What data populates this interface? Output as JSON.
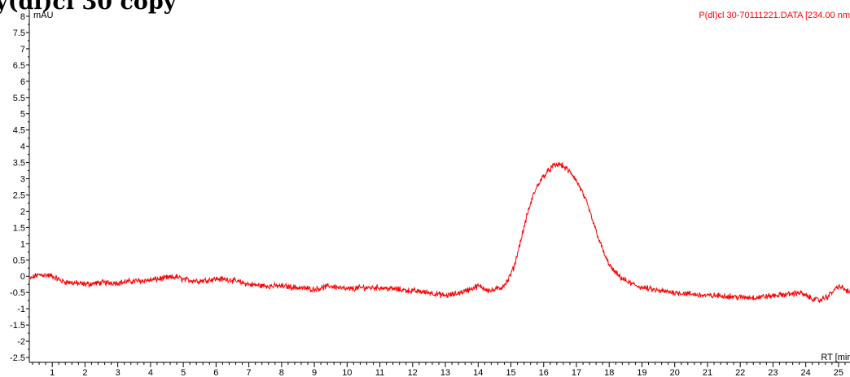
{
  "header": {
    "cropped_title_text": "y(dl)cl 30 copy"
  },
  "colors": {
    "trace": "#ff0000",
    "axis": "#000000",
    "background": "#ffffff"
  },
  "chart_data": {
    "type": "line",
    "y_unit": "mAU",
    "x_unit": "RT [mir",
    "trace_label": "P(dl)cl 30-70111221.DATA [234.00 nm",
    "xlim": [
      0.3,
      25.35
    ],
    "ylim": [
      -2.65,
      8.2
    ],
    "x_ticks": [
      1,
      2,
      3,
      4,
      5,
      6,
      7,
      8,
      9,
      10,
      11,
      12,
      13,
      14,
      15,
      16,
      17,
      18,
      19,
      20,
      21,
      22,
      23,
      24,
      25
    ],
    "x_minor_step": 0.2,
    "y_ticks": [
      -2.5,
      -2,
      -1.5,
      -1,
      -0.5,
      0,
      0.5,
      1,
      1.5,
      2,
      2.5,
      3,
      3.5,
      4,
      4.5,
      5,
      5.5,
      6,
      6.5,
      7,
      7.5,
      8
    ],
    "y_tick_labels": [
      "-2.5",
      "-2",
      "-1.5",
      "-1",
      "-0.5",
      "0",
      "0.5",
      "1",
      "1.5",
      "2",
      "2.5",
      "3",
      "3.5",
      "4",
      "4.5",
      "5",
      "5.5",
      "6",
      "6.5",
      "7",
      "7.5",
      "8"
    ],
    "series": [
      {
        "x": [
          0.3,
          0.5,
          0.7,
          1.0,
          1.3,
          1.6,
          2.0,
          2.5,
          3.0,
          3.5,
          4.0,
          4.5,
          4.8,
          5.0,
          5.5,
          6.0,
          6.4,
          7.0,
          7.5,
          8.0,
          8.5,
          9.0,
          9.5,
          10.0,
          10.5,
          11.0,
          11.5,
          12.0,
          12.5,
          13.0,
          13.3,
          13.6,
          14.0,
          14.4,
          14.7,
          14.9,
          15.1,
          15.3,
          15.5,
          15.7,
          15.9,
          16.1,
          16.3,
          16.5,
          16.7,
          16.9,
          17.1,
          17.3,
          17.5,
          17.7,
          17.9,
          18.1,
          18.3,
          18.6,
          19.0,
          19.5,
          20.0,
          20.5,
          21.0,
          21.5,
          22.0,
          22.5,
          23.0,
          23.5,
          23.8,
          24.1,
          24.4,
          24.7,
          25.0,
          25.35
        ],
        "y": [
          -0.1,
          0.02,
          0.05,
          0.0,
          -0.15,
          -0.2,
          -0.25,
          -0.2,
          -0.2,
          -0.15,
          -0.12,
          -0.05,
          -0.02,
          -0.1,
          -0.15,
          -0.08,
          -0.1,
          -0.25,
          -0.3,
          -0.3,
          -0.35,
          -0.4,
          -0.3,
          -0.4,
          -0.35,
          -0.35,
          -0.4,
          -0.45,
          -0.5,
          -0.6,
          -0.55,
          -0.45,
          -0.3,
          -0.45,
          -0.35,
          -0.15,
          0.3,
          1.1,
          1.9,
          2.55,
          2.95,
          3.2,
          3.4,
          3.45,
          3.3,
          3.1,
          2.75,
          2.3,
          1.7,
          1.1,
          0.55,
          0.2,
          0.0,
          -0.2,
          -0.35,
          -0.45,
          -0.5,
          -0.55,
          -0.6,
          -0.6,
          -0.65,
          -0.65,
          -0.6,
          -0.55,
          -0.5,
          -0.65,
          -0.75,
          -0.6,
          -0.3,
          -0.5
        ]
      }
    ]
  }
}
